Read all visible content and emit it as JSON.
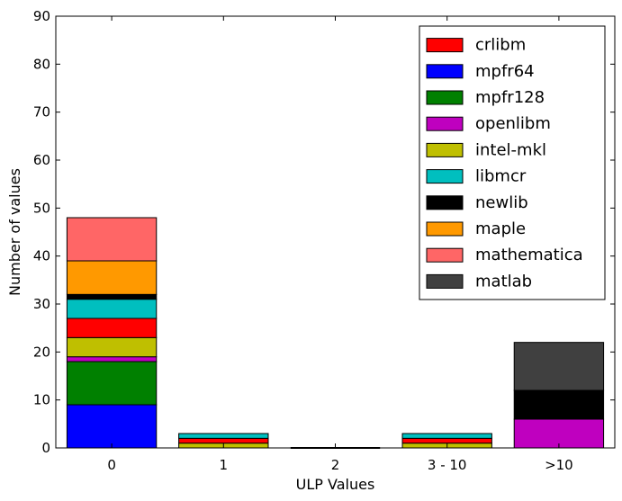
{
  "chart_data": {
    "type": "bar",
    "stacked": true,
    "title": "",
    "xlabel": "ULP Values",
    "ylabel": "Number of values",
    "categories": [
      "0",
      "1",
      "2",
      "3 - 10",
      ">10"
    ],
    "ylim": [
      0,
      90
    ],
    "yticks": [
      0,
      10,
      20,
      30,
      40,
      50,
      60,
      70,
      80,
      90
    ],
    "grid": false,
    "legend_position": "top-right",
    "stack_order": [
      "mpfr64",
      "mpfr128",
      "openlibm",
      "intel-mkl",
      "crlibm",
      "libmcr",
      "newlib",
      "maple",
      "mathematica",
      "matlab"
    ],
    "series": [
      {
        "name": "crlibm",
        "color": "#ff0000",
        "values": [
          4,
          1,
          0,
          1,
          0
        ]
      },
      {
        "name": "mpfr64",
        "color": "#0000ff",
        "values": [
          9,
          0,
          0,
          0,
          0
        ]
      },
      {
        "name": "mpfr128",
        "color": "#008000",
        "values": [
          9,
          0,
          0,
          0,
          0
        ]
      },
      {
        "name": "openlibm",
        "color": "#bf00bf",
        "values": [
          1,
          0,
          0,
          0,
          6
        ]
      },
      {
        "name": "intel-mkl",
        "color": "#bfbf00",
        "values": [
          4,
          1,
          0,
          1,
          0
        ]
      },
      {
        "name": "libmcr",
        "color": "#00bfbf",
        "values": [
          4,
          1,
          0,
          1,
          0
        ]
      },
      {
        "name": "newlib",
        "color": "#000000",
        "values": [
          1,
          0,
          0,
          0,
          6
        ]
      },
      {
        "name": "maple",
        "color": "#ff9900",
        "values": [
          7,
          0,
          0,
          0,
          0
        ]
      },
      {
        "name": "mathematica",
        "color": "#ff6666",
        "values": [
          9,
          0,
          0,
          0,
          0
        ]
      },
      {
        "name": "matlab",
        "color": "#404040",
        "values": [
          0,
          0,
          0,
          0,
          10
        ]
      }
    ]
  }
}
